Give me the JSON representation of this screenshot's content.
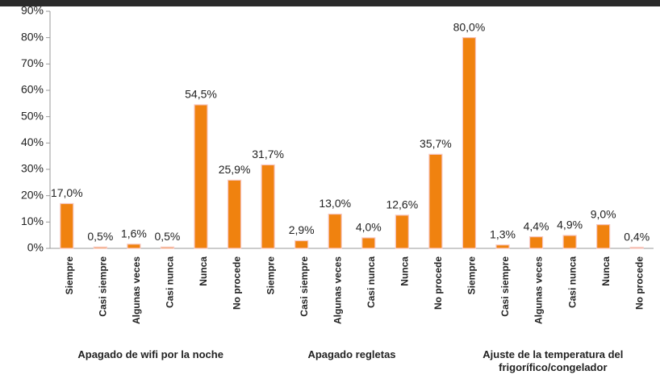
{
  "chart_data": {
    "type": "bar",
    "categories": [
      "Siempre",
      "Casi siempre",
      "Algunas veces",
      "Casi nunca",
      "Nunca",
      "No procede",
      "Siempre",
      "Casi siempre",
      "Algunas veces",
      "Casi nunca",
      "Nunca",
      "No procede",
      "Siempre",
      "Casi siempre",
      "Algunas veces",
      "Casi nunca",
      "Nunca",
      "No procede"
    ],
    "values": [
      17.0,
      0.5,
      1.6,
      0.5,
      54.5,
      25.9,
      31.7,
      2.9,
      13.0,
      4.0,
      12.6,
      35.7,
      80.0,
      1.3,
      4.4,
      4.9,
      9.0,
      0.4
    ],
    "value_labels": [
      "17,0%",
      "0,5%",
      "1,6%",
      "0,5%",
      "54,5%",
      "25,9%",
      "31,7%",
      "2,9%",
      "13,0%",
      "4,0%",
      "12,6%",
      "35,7%",
      "80,0%",
      "1,3%",
      "4,4%",
      "4,9%",
      "9,0%",
      "0,4%"
    ],
    "groups": [
      "Apagado de wifi por la noche",
      "Apagado regletas",
      "Ajuste de la temperatura del frigorífico/congelador"
    ],
    "color": "#f0820f",
    "ylim": [
      0,
      90
    ],
    "yticks": [
      {
        "value": 0,
        "label": "0%"
      },
      {
        "value": 10,
        "label": "10%"
      },
      {
        "value": 20,
        "label": "20%"
      },
      {
        "value": 30,
        "label": "30%"
      },
      {
        "value": 40,
        "label": "40%"
      },
      {
        "value": 50,
        "label": "50%"
      },
      {
        "value": 60,
        "label": "60%"
      },
      {
        "value": 70,
        "label": "70%"
      },
      {
        "value": 80,
        "label": "80%"
      },
      {
        "value": 90,
        "label": "90%"
      }
    ],
    "grid": false
  }
}
